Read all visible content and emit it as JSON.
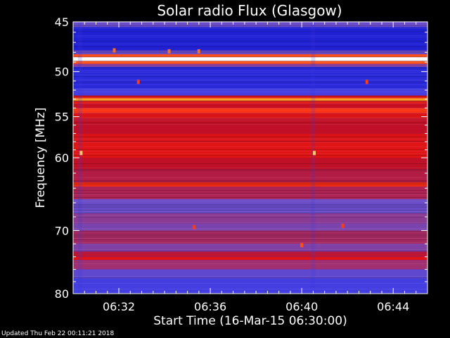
{
  "chart_data": {
    "type": "heatmap",
    "title": "Solar radio Flux (Glasgow)",
    "xlabel": "Start Time (16-Mar-15 06:30:00)",
    "ylabel": "Frequency [MHz]",
    "x_range_minutes": [
      0,
      15.5
    ],
    "x_ticks": [
      {
        "minute": 2,
        "label": "06:32"
      },
      {
        "minute": 6,
        "label": "06:36"
      },
      {
        "minute": 10,
        "label": "06:40"
      },
      {
        "minute": 14,
        "label": "06:44"
      }
    ],
    "y_scale": "log",
    "ylim": [
      45,
      80
    ],
    "y_ticks": [
      {
        "value": 45,
        "label": "45"
      },
      {
        "value": 50,
        "label": "50"
      },
      {
        "value": 55,
        "label": "55"
      },
      {
        "value": 60,
        "label": "60"
      },
      {
        "value": 70,
        "label": "70"
      },
      {
        "value": 80,
        "label": "80"
      }
    ],
    "y_minor_ticks": [
      46,
      47,
      48,
      49,
      51,
      52,
      53,
      54,
      56,
      57,
      58,
      59,
      62,
      64,
      66,
      68,
      72,
      74,
      76,
      78
    ],
    "colormap": [
      "#00001e",
      "#1010c8",
      "#3a3ae6",
      "#6a4cc8",
      "#a03070",
      "#c01028",
      "#e01414",
      "#ff3c14",
      "#ffa028",
      "#fff0c0",
      "#ffffff"
    ],
    "bands": [
      {
        "f": [
          45,
          45.5
        ],
        "i": 0.3
      },
      {
        "f": [
          45.5,
          47.8
        ],
        "i": 0.14
      },
      {
        "f": [
          47.8,
          48.2
        ],
        "i": 0.3
      },
      {
        "f": [
          48.2,
          48.5
        ],
        "i": 0.72
      },
      {
        "f": [
          48.5,
          48.9
        ],
        "i": 1.0
      },
      {
        "f": [
          48.9,
          49.2
        ],
        "i": 0.72
      },
      {
        "f": [
          49.2,
          49.5
        ],
        "i": 0.35
      },
      {
        "f": [
          49.5,
          51.8
        ],
        "i": 0.16
      },
      {
        "f": [
          51.8,
          52.6
        ],
        "i": 0.22
      },
      {
        "f": [
          52.6,
          52.9
        ],
        "i": 0.58
      },
      {
        "f": [
          52.9,
          53.2
        ],
        "i": 0.8
      },
      {
        "f": [
          53.2,
          53.5
        ],
        "i": 0.62
      },
      {
        "f": [
          53.5,
          54.0
        ],
        "i": 0.52
      },
      {
        "f": [
          54.0,
          54.6
        ],
        "i": 0.68
      },
      {
        "f": [
          54.6,
          55.2
        ],
        "i": 0.58
      },
      {
        "f": [
          55.2,
          57.0
        ],
        "i": 0.5
      },
      {
        "f": [
          57.0,
          58.0
        ],
        "i": 0.58
      },
      {
        "f": [
          58.0,
          60.0
        ],
        "i": 0.6
      },
      {
        "f": [
          60.0,
          61.5
        ],
        "i": 0.5
      },
      {
        "f": [
          61.5,
          63.2
        ],
        "i": 0.46
      },
      {
        "f": [
          63.2,
          63.8
        ],
        "i": 0.66
      },
      {
        "f": [
          63.8,
          65.5
        ],
        "i": 0.44
      },
      {
        "f": [
          65.5,
          67.5
        ],
        "i": 0.3
      },
      {
        "f": [
          67.5,
          69.0
        ],
        "i": 0.36
      },
      {
        "f": [
          69.0,
          70.0
        ],
        "i": 0.33
      },
      {
        "f": [
          70.0,
          72.0
        ],
        "i": 0.42
      },
      {
        "f": [
          72.0,
          73.2
        ],
        "i": 0.34
      },
      {
        "f": [
          73.2,
          74.0
        ],
        "i": 0.48
      },
      {
        "f": [
          74.0,
          74.5
        ],
        "i": 0.6
      },
      {
        "f": [
          74.5,
          76.0
        ],
        "i": 0.4
      },
      {
        "f": [
          76.0,
          77.5
        ],
        "i": 0.28
      },
      {
        "f": [
          77.5,
          80.0
        ],
        "i": 0.22
      }
    ],
    "bright_spots": [
      {
        "minute": 0.35,
        "f": 59.4,
        "i": 0.85
      },
      {
        "minute": 10.55,
        "f": 59.4,
        "i": 0.85
      },
      {
        "minute": 2.85,
        "f": 51.1,
        "i": 0.7
      },
      {
        "minute": 12.85,
        "f": 51.1,
        "i": 0.7
      },
      {
        "minute": 1.8,
        "f": 47.8,
        "i": 0.75
      },
      {
        "minute": 4.2,
        "f": 47.9,
        "i": 0.75
      },
      {
        "minute": 5.5,
        "f": 47.9,
        "i": 0.75
      },
      {
        "minute": 10.0,
        "f": 72.2,
        "i": 0.72
      },
      {
        "minute": 5.3,
        "f": 69.5,
        "i": 0.7
      },
      {
        "minute": 11.8,
        "f": 69.3,
        "i": 0.7
      }
    ],
    "footer": "Updated Thu Feb 22 00:11:21 2018"
  }
}
